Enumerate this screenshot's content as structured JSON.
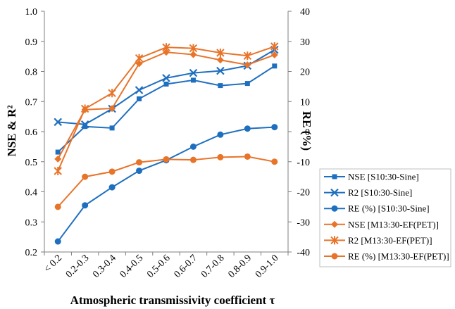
{
  "chart_data": {
    "type": "line",
    "categories": [
      "< 0.2",
      "0.2-0.3",
      "0.3-0.4",
      "0.4-0.5",
      "0.5-0.6",
      "0.6-0.7",
      "0.7-0.8",
      "0.8-0.9",
      "0.9-1.0"
    ],
    "xlabel": "Atmospheric transmissivity coefficient τ",
    "ylabel": "NSE & R²",
    "y2label": "RE (%)",
    "ylim": [
      0.2,
      1.0
    ],
    "y2lim": [
      -40,
      40
    ],
    "yticks": [
      "0.2",
      "0.3",
      "0.4",
      "0.5",
      "0.6",
      "0.7",
      "0.8",
      "0.9",
      "1.0"
    ],
    "y2ticks": [
      "-40",
      "-30",
      "-20",
      "-10",
      "0",
      "10",
      "20",
      "30",
      "40"
    ],
    "grid": false,
    "legend_position": "bottom-right",
    "series": [
      {
        "name": "NSE [S10:30-Sine]",
        "axis": "left",
        "color": "#1f6fbf",
        "marker": "square",
        "values": [
          0.532,
          0.617,
          0.612,
          0.709,
          0.758,
          0.771,
          0.753,
          0.76,
          0.818
        ]
      },
      {
        "name": "R2 [S10:30-Sine]",
        "axis": "left",
        "color": "#1f6fbf",
        "marker": "x",
        "values": [
          0.632,
          0.624,
          0.676,
          0.738,
          0.778,
          0.795,
          0.802,
          0.819,
          0.872
        ]
      },
      {
        "name": "RE (%) [S10:30-Sine]",
        "axis": "right",
        "color": "#1f6fbf",
        "marker": "circle",
        "values": [
          -36.5,
          -24.5,
          -18.5,
          -13.0,
          -9.5,
          -5.0,
          -1.0,
          1.0,
          1.5
        ]
      },
      {
        "name": "NSE [M13:30-EF(PET)]",
        "axis": "left",
        "color": "#e8742a",
        "marker": "diamond",
        "values": [
          0.509,
          0.673,
          0.677,
          0.826,
          0.864,
          0.856,
          0.838,
          0.822,
          0.855
        ]
      },
      {
        "name": "R2 [M13:30-EF(PET)]",
        "axis": "left",
        "color": "#e8742a",
        "marker": "star",
        "values": [
          0.469,
          0.676,
          0.728,
          0.844,
          0.88,
          0.877,
          0.862,
          0.852,
          0.883
        ]
      },
      {
        "name": "RE (%) [M13:30-EF(PET)]",
        "axis": "right",
        "color": "#e8742a",
        "marker": "circle",
        "values": [
          -25.0,
          -15.0,
          -13.3,
          -10.2,
          -9.2,
          -9.4,
          -8.5,
          -8.3,
          -10.0
        ]
      }
    ]
  }
}
